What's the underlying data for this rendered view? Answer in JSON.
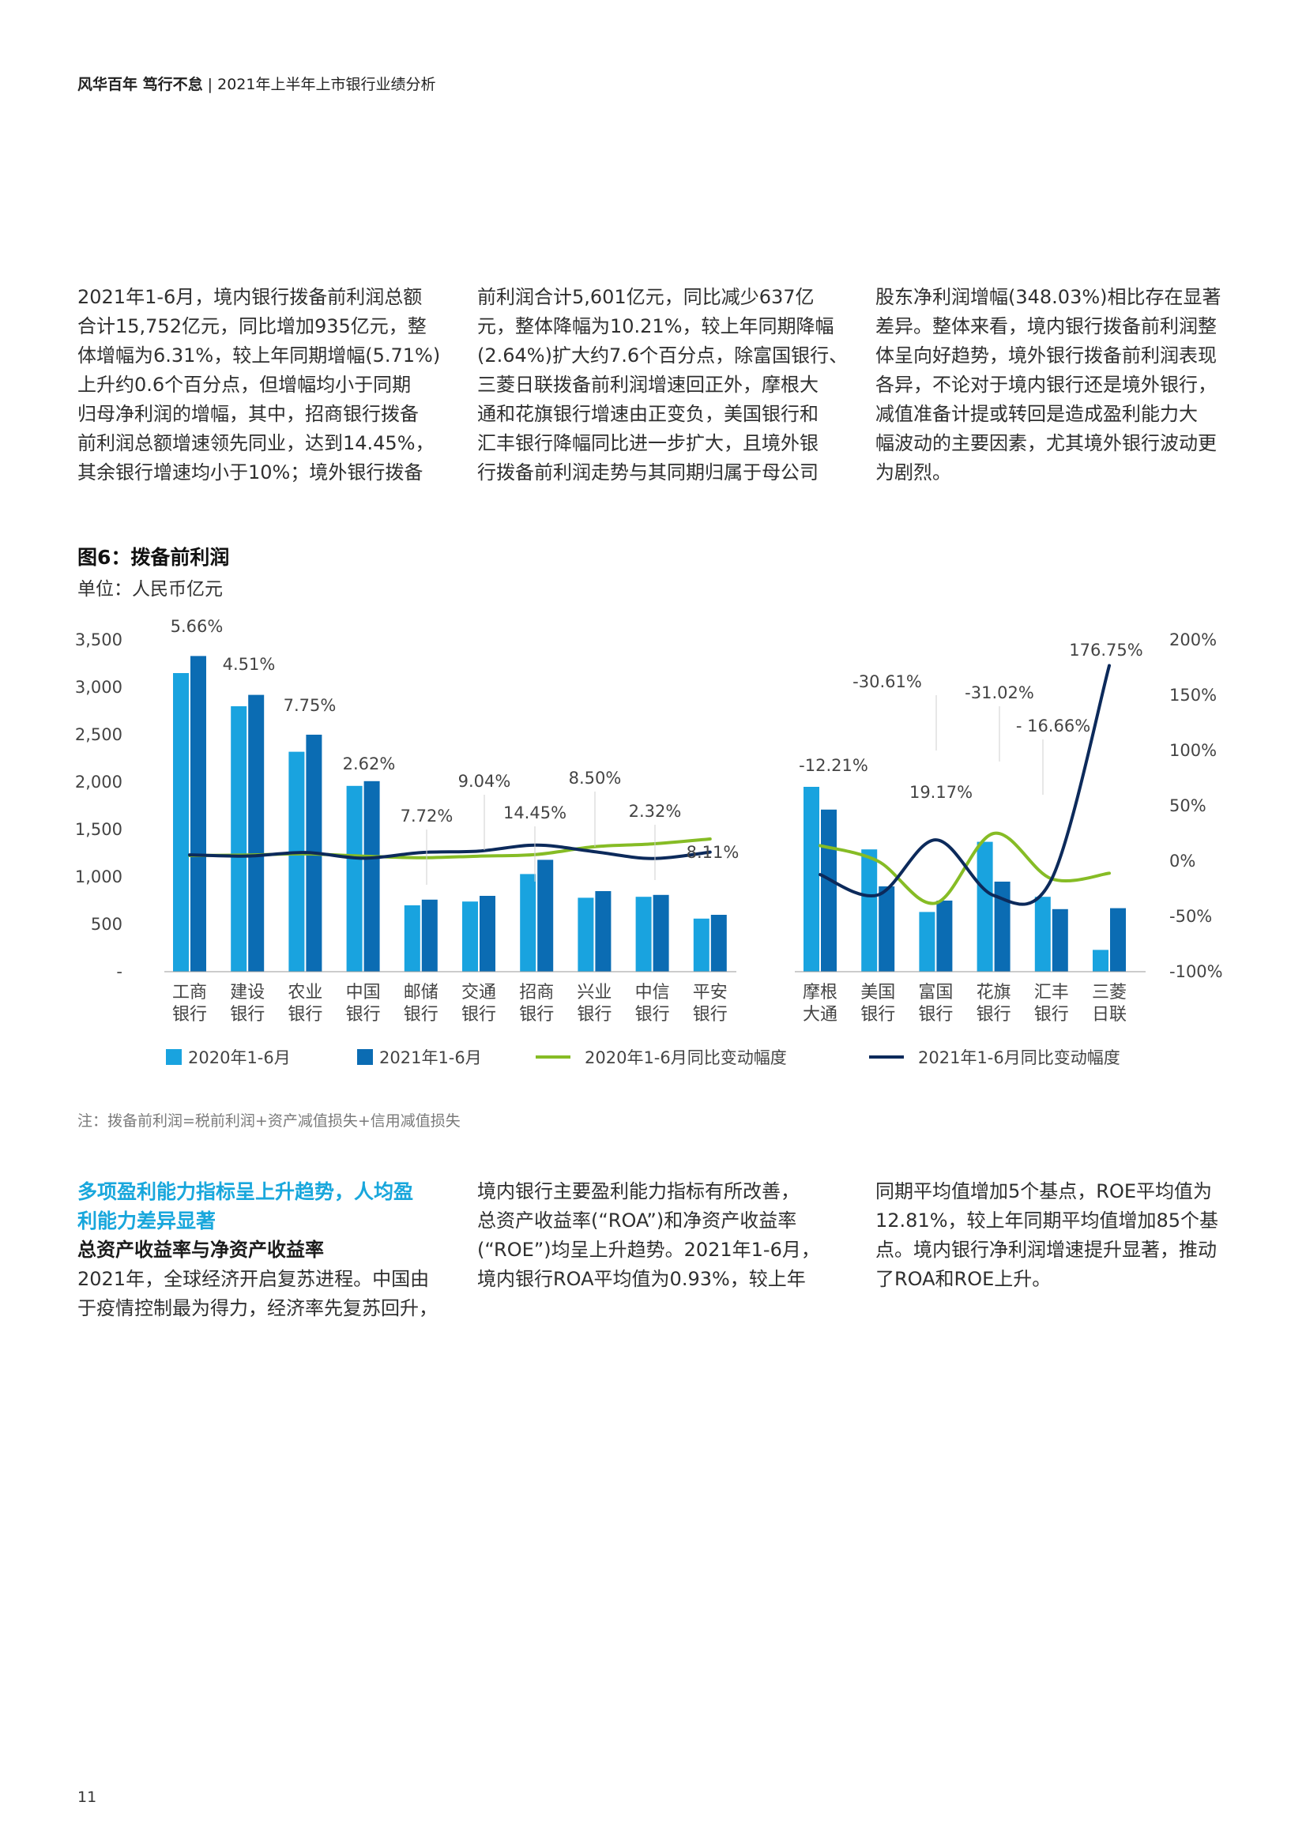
{
  "header": {
    "brand": "风华百年 笃行不怠",
    "sep": " | ",
    "title": "2021年上半年上市银行业绩分析"
  },
  "intro": {
    "col1": [
      "2021年1-6月，境内银行拨备前利润总额",
      "合计15,752亿元，同比增加935亿元，整",
      "体增幅为6.31%，较上年同期增幅(5.71%)",
      "上升约0.6个百分点，但增幅均小于同期",
      "归母净利润的增幅，其中，招商银行拨备",
      "前利润总额增速领先同业，达到14.45%，",
      "其余银行增速均小于10%；境外银行拨备"
    ],
    "col2": [
      "前利润合计5,601亿元，同比减少637亿",
      "元，整体降幅为10.21%，较上年同期降幅",
      "(2.64%)扩大约7.6个百分点，除富国银行、",
      "三菱日联拨备前利润增速回正外，摩根大",
      "通和花旗银行增速由正变负，美国银行和",
      "汇丰银行降幅同比进一步扩大，且境外银",
      "行拨备前利润走势与其同期归属于母公司"
    ],
    "col3": [
      "股东净利润增幅(348.03%)相比存在显著",
      "差异。整体来看，境内银行拨备前利润整",
      "体呈向好趋势，境外银行拨备前利润表现",
      "各异，不论对于境内银行还是境外银行，",
      "减值准备计提或转回是造成盈利能力大",
      "幅波动的主要因素，尤其境外银行波动更",
      "为剧烈。"
    ]
  },
  "figure": {
    "title": "图6：拨备前利润",
    "unit": "单位：人民币亿元"
  },
  "chart_data": {
    "type": "bar",
    "categories": [
      [
        "工商",
        "银行"
      ],
      [
        "建设",
        "银行"
      ],
      [
        "农业",
        "银行"
      ],
      [
        "中国",
        "银行"
      ],
      [
        "邮储",
        "银行"
      ],
      [
        "交通",
        "银行"
      ],
      [
        "招商",
        "银行"
      ],
      [
        "兴业",
        "银行"
      ],
      [
        "中信",
        "银行"
      ],
      [
        "平安",
        "银行"
      ],
      [
        "摩根",
        "大通"
      ],
      [
        "美国",
        "银行"
      ],
      [
        "富国",
        "银行"
      ],
      [
        "花旗",
        "银行"
      ],
      [
        "汇丰",
        "银行"
      ],
      [
        "三菱",
        "日联"
      ]
    ],
    "series": [
      {
        "name": "2020年1-6月",
        "type": "bar",
        "axis": "left",
        "color": "#19a3df",
        "values": [
          3150,
          2800,
          2320,
          1960,
          700,
          740,
          1030,
          780,
          790,
          560,
          1950,
          1290,
          630,
          1370,
          790,
          230
        ]
      },
      {
        "name": "2021年1-6月",
        "type": "bar",
        "axis": "left",
        "color": "#0b6cb3",
        "values": [
          3330,
          2920,
          2500,
          2010,
          760,
          800,
          1180,
          850,
          810,
          600,
          1710,
          900,
          750,
          950,
          660,
          670
        ]
      },
      {
        "name": "2020年1-6月同比变动幅度",
        "type": "line",
        "axis": "right",
        "color": "#86bc25",
        "values": [
          5.0,
          5.5,
          6.5,
          4.5,
          3.0,
          4.5,
          6.0,
          13.0,
          15.5,
          20.0,
          14.0,
          0.0,
          -38.0,
          25.0,
          -16.0,
          -11.0
        ]
      },
      {
        "name": "2021年1-6月同比变动幅度",
        "type": "line",
        "axis": "right",
        "color": "#0c2a5b",
        "values": [
          5.66,
          4.51,
          7.75,
          2.62,
          7.72,
          9.04,
          14.45,
          8.5,
          2.32,
          8.11,
          -12.21,
          -30.61,
          19.17,
          -31.02,
          -16.66,
          176.75
        ]
      }
    ],
    "annotations": [
      "5.66%",
      "4.51%",
      "7.75%",
      "2.62%",
      "7.72%",
      "9.04%",
      "14.45%",
      "8.50%",
      "2.32%",
      "8.11%",
      "-12.21%",
      "-30.61%",
      "19.17%",
      "-31.02%",
      "- 16.66%",
      "176.75%"
    ],
    "y_left": {
      "min": 0,
      "max": 3500,
      "ticks": [
        "-",
        "500",
        "1,000",
        "1,500",
        "2,000",
        "2,500",
        "3,000",
        "3,500"
      ]
    },
    "y_right": {
      "min": -100,
      "max": 200,
      "ticks": [
        "-100%",
        "-50%",
        "0%",
        "50%",
        "100%",
        "150%",
        "200%"
      ]
    },
    "legend_position": "bottom",
    "grid": false
  },
  "note": "注：拨备前利润=税前利润+资产减值损失+信用减值损失",
  "section": {
    "heading": [
      "多项盈利能力指标呈上升趋势，人均盈",
      "利能力差异显著"
    ],
    "subheading": "总资产收益率与净资产收益率",
    "col1": [
      "2021年，全球经济开启复苏进程。中国由",
      "于疫情控制最为得力，经济率先复苏回升，"
    ],
    "col2": [
      "境内银行主要盈利能力指标有所改善，",
      "总资产收益率(“ROA”)和净资产收益率",
      "(“ROE”)均呈上升趋势。2021年1-6月，",
      "境内银行ROA平均值为0.93%，较上年"
    ],
    "col3": [
      "同期平均值增加5个基点，ROE平均值为",
      "12.81%，较上年同期平均值增加85个基",
      "点。境内银行净利润增速提升显著，推动",
      "了ROA和ROE上升。"
    ]
  },
  "page_number": "11"
}
